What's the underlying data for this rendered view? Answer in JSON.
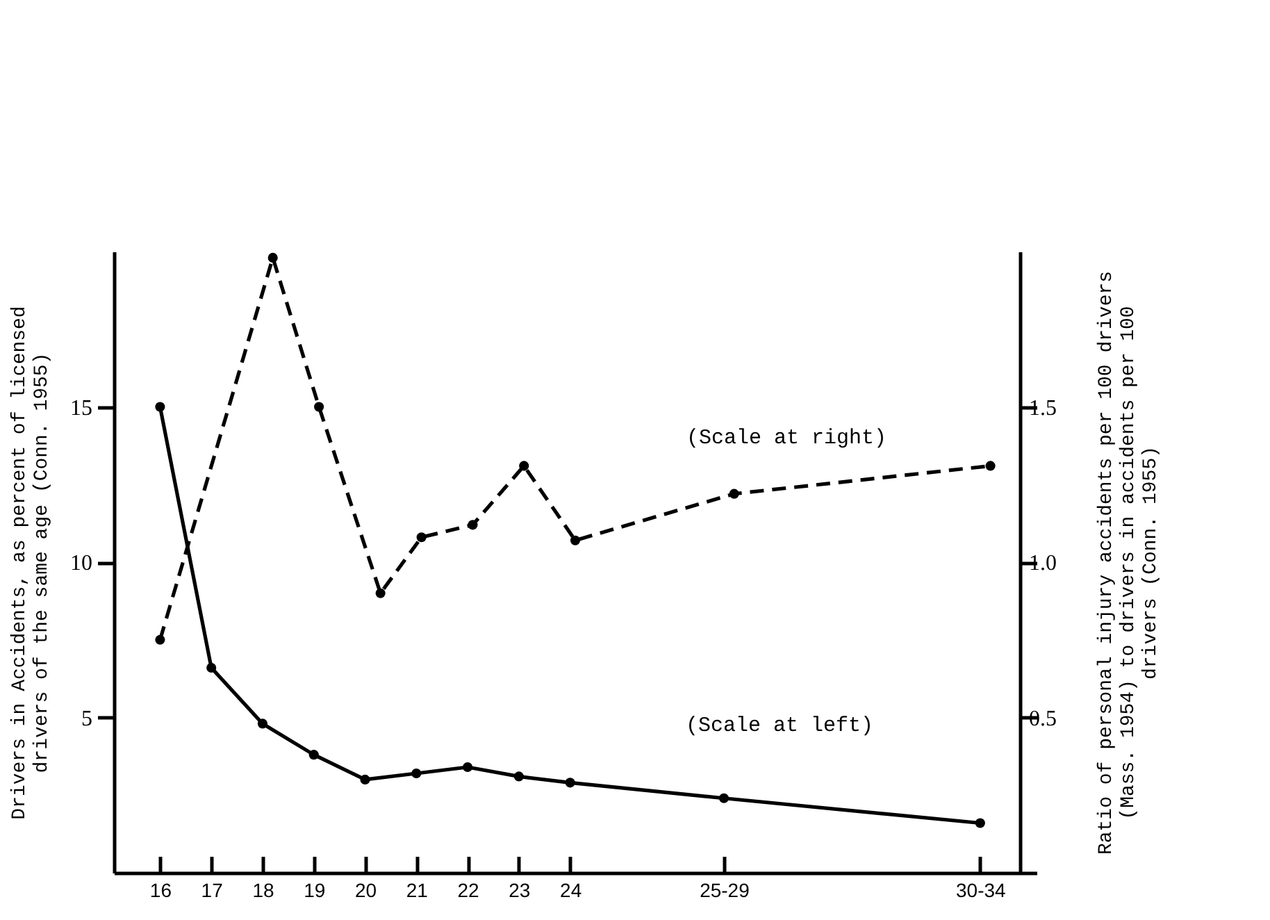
{
  "chart_data": {
    "type": "line",
    "ylabel": "Drivers in Accidents, as percent of licensed\ndrivers of the same age (Conn. 1955)",
    "y2label": "Ratio of personal injury accidents per 100 drivers\n(Mass. 1954) to drivers in accidents per 100\ndrivers (Conn. 1955)",
    "xlim": [
      15.1,
      33.1
    ],
    "xticks": [
      16,
      17,
      18,
      19,
      20,
      21,
      22,
      23,
      24,
      {
        "value": 27,
        "label": "25-29"
      },
      {
        "value": 32,
        "label": "30-34"
      }
    ],
    "ylim": [
      0,
      20
    ],
    "yticks": [
      5,
      10,
      15
    ],
    "y2lim": [
      0,
      2
    ],
    "y2ticks": [
      0.5,
      {
        "value": 1,
        "label": "1.0"
      },
      1.5
    ],
    "marker": "circle",
    "grid": false,
    "series": [
      {
        "color": "#000000",
        "line_style": "solid",
        "x": [
          16,
          17,
          18,
          19,
          20,
          21,
          22,
          23,
          24,
          27,
          32
        ],
        "values": [
          15.0,
          6.6,
          4.8,
          3.8,
          3.0,
          3.2,
          3.4,
          3.1,
          2.9,
          2.4,
          1.6
        ]
      },
      {
        "color": "#000000",
        "line_style": "dashed",
        "axis": "y2",
        "x": [
          16,
          18.2,
          19.1,
          20.3,
          21.1,
          22.1,
          23.1,
          24.1,
          27.2,
          32.2
        ],
        "values": [
          0.75,
          1.98,
          1.5,
          0.9,
          1.08,
          1.12,
          1.31,
          1.07,
          1.22,
          1.31
        ]
      }
    ],
    "annotations": [
      "(Scale at right)",
      "(Scale at left)"
    ]
  }
}
